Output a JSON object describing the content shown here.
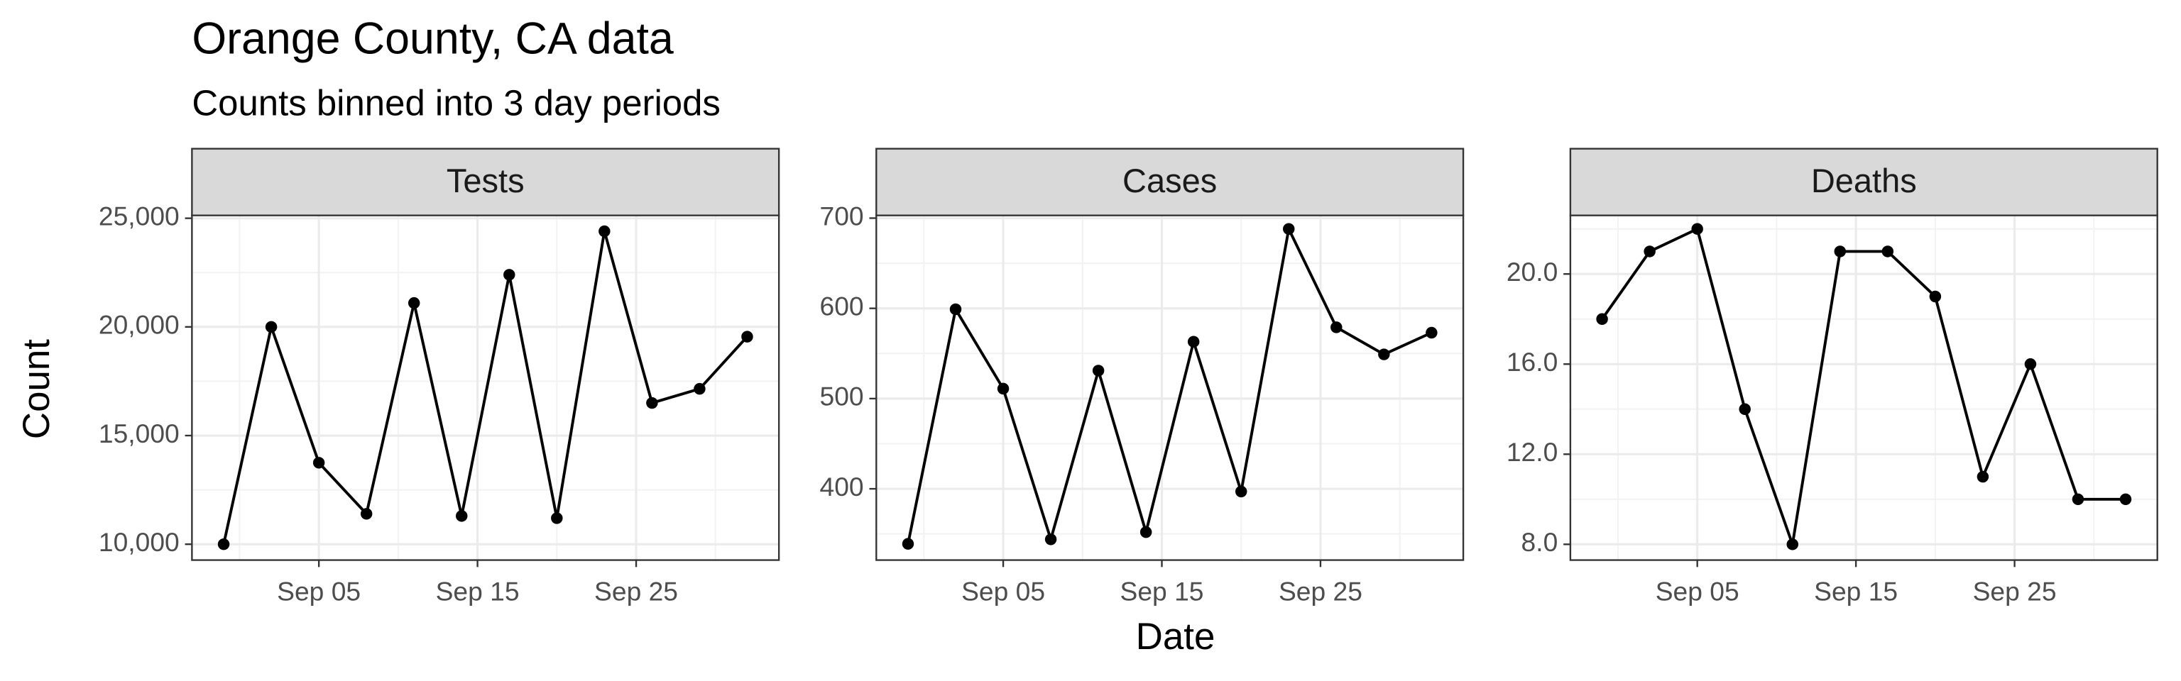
{
  "title": "Orange County, CA data",
  "subtitle": "Counts binned into 3 day periods",
  "x_label": "Date",
  "y_label": "Count",
  "chart_data": [
    {
      "type": "line",
      "title": "Tests",
      "color": "#000000",
      "grid": true,
      "x": [
        "Aug 30",
        "Sep 02",
        "Sep 05",
        "Sep 08",
        "Sep 11",
        "Sep 14",
        "Sep 17",
        "Sep 20",
        "Sep 23",
        "Sep 26",
        "Sep 29",
        "Oct 02"
      ],
      "values": [
        10000,
        20000,
        13750,
        11400,
        21100,
        11300,
        22400,
        11200,
        24400,
        16500,
        17150,
        19550
      ],
      "xlim": [
        "Aug 28",
        "Oct 04"
      ],
      "xticks": [
        "Sep 05",
        "Sep 15",
        "Sep 25"
      ],
      "ylim": [
        9270,
        25130
      ],
      "yticks": [
        {
          "value": 10000,
          "label": "10,000"
        },
        {
          "value": 15000,
          "label": "15,000"
        },
        {
          "value": 20000,
          "label": "20,000"
        },
        {
          "value": 25000,
          "label": "25,000"
        }
      ]
    },
    {
      "type": "line",
      "title": "Cases",
      "color": "#000000",
      "grid": true,
      "x": [
        "Aug 30",
        "Sep 02",
        "Sep 05",
        "Sep 08",
        "Sep 11",
        "Sep 14",
        "Sep 17",
        "Sep 20",
        "Sep 23",
        "Sep 26",
        "Sep 29",
        "Oct 02"
      ],
      "values": [
        339,
        599,
        511,
        344,
        531,
        352,
        563,
        397,
        688,
        579,
        549,
        573
      ],
      "xlim": [
        "Aug 28",
        "Oct 04"
      ],
      "xticks": [
        "Sep 05",
        "Sep 15",
        "Sep 25"
      ],
      "ylim": [
        321,
        703
      ],
      "yticks": [
        400,
        500,
        600,
        700
      ]
    },
    {
      "type": "line",
      "title": "Deaths",
      "color": "#000000",
      "grid": true,
      "x": [
        "Aug 30",
        "Sep 02",
        "Sep 05",
        "Sep 08",
        "Sep 11",
        "Sep 14",
        "Sep 17",
        "Sep 20",
        "Sep 23",
        "Sep 26",
        "Sep 29",
        "Oct 02"
      ],
      "values": [
        18,
        21,
        22,
        14,
        8,
        21,
        21,
        19,
        11,
        16,
        10,
        10
      ],
      "xlim": [
        "Aug 28",
        "Oct 04"
      ],
      "xticks": [
        "Sep 05",
        "Sep 15",
        "Sep 25"
      ],
      "ylim": [
        7.3,
        22.6
      ],
      "yticks": [
        {
          "value": 8,
          "label": "8.0"
        },
        {
          "value": 12,
          "label": "12.0"
        },
        {
          "value": 16,
          "label": "16.0"
        },
        {
          "value": 20,
          "label": "20.0"
        }
      ]
    }
  ]
}
